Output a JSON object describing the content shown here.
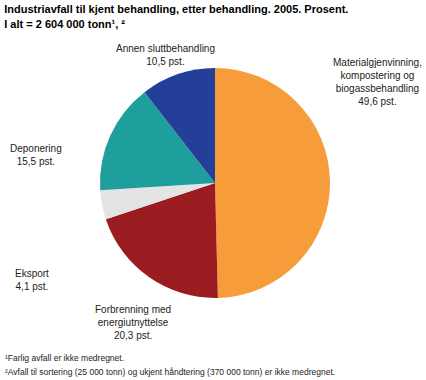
{
  "chart_data": {
    "type": "pie",
    "title": "Industriavfall til kjent behandling, etter behandling. 2005. Prosent.\nI alt = 2 604 000 tonn¹, ²",
    "categories": [
      "Materialgjenvinning, kompostering og biogassbehandling",
      "Forbrenning med energiutnyttelse",
      "Eksport",
      "Deponering",
      "Annen sluttbehandling"
    ],
    "values": [
      49.6,
      20.3,
      4.1,
      15.5,
      10.5
    ],
    "value_labels": [
      "49,6 pst.",
      "20,3 pst.",
      "4,1 pst.",
      "15,5 pst.",
      "10,5 pst."
    ],
    "colors": [
      "#f79c3a",
      "#9b1c20",
      "#e4e4e4",
      "#1f9e9e",
      "#243f98"
    ],
    "data_labels": true,
    "footnotes": [
      "¹Farlig avfall er ikke medregnet.",
      "²Avfall til sortering (25 000 tonn) og ukjent håndtering (370 000 tonn) er ikke medregnet."
    ]
  }
}
